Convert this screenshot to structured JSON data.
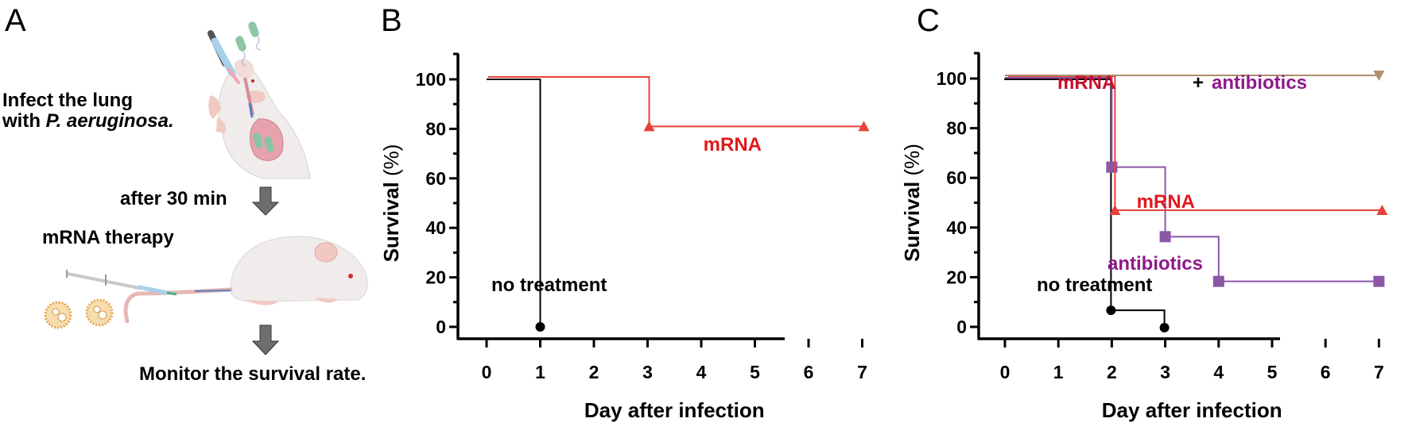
{
  "panels": {
    "a": {
      "letter": "A",
      "step1_line1": "Infect the lung",
      "step1_line2_prefix": "with ",
      "step1_line2_italic": "P. aeruginosa.",
      "step2_label": "after 30 min",
      "step3_label": "mRNA therapy",
      "step4_label": "Monitor the survival rate."
    },
    "b": {
      "letter": "B"
    },
    "c": {
      "letter": "C"
    }
  },
  "chart_data": [
    {
      "id": "B",
      "type": "line",
      "subtype": "kaplan-meier-step",
      "title": "",
      "xlabel": "Day after infection",
      "ylabel_bold": "Survival",
      "ylabel_unit": "(%)",
      "xlim": [
        0,
        7
      ],
      "ylim": [
        0,
        100
      ],
      "xticks": [
        0,
        1,
        2,
        3,
        4,
        5,
        6,
        7
      ],
      "yticks": [
        0,
        20,
        40,
        60,
        80,
        100
      ],
      "grid": false,
      "series": [
        {
          "name": "no treatment",
          "color": "#000000",
          "marker": "circle",
          "x": [
            0,
            1
          ],
          "y": [
            100,
            0
          ],
          "marker_points": [
            [
              1,
              0
            ]
          ]
        },
        {
          "name": "mRNA",
          "color": "#e8413a",
          "marker": "triangle-up",
          "x": [
            0,
            3,
            7
          ],
          "y": [
            100,
            80,
            80
          ],
          "marker_points": [
            [
              3,
              80
            ],
            [
              7,
              80
            ]
          ]
        }
      ],
      "annotations": [
        {
          "text": "no treatment",
          "color": "#000000"
        },
        {
          "text": "mRNA",
          "color": "#e0191e"
        }
      ]
    },
    {
      "id": "C",
      "type": "line",
      "subtype": "kaplan-meier-step",
      "title": "",
      "xlabel": "Day after infection",
      "ylabel_bold": "Survival",
      "ylabel_unit": "(%)",
      "xlim": [
        0,
        7
      ],
      "ylim": [
        0,
        100
      ],
      "xticks": [
        0,
        1,
        2,
        3,
        4,
        5,
        6,
        7
      ],
      "yticks": [
        0,
        20,
        40,
        60,
        80,
        100
      ],
      "grid": false,
      "series": [
        {
          "name": "no treatment",
          "color": "#000000",
          "marker": "circle",
          "x": [
            0,
            2,
            3
          ],
          "y": [
            100,
            7,
            0
          ],
          "marker_points": [
            [
              2,
              7
            ],
            [
              3,
              0
            ]
          ]
        },
        {
          "name": "antibiotics",
          "color": "#8b57a6",
          "marker": "square",
          "x": [
            0,
            2,
            3,
            4,
            7
          ],
          "y": [
            100,
            64,
            36,
            18,
            18
          ],
          "marker_points": [
            [
              2,
              64
            ],
            [
              3,
              36
            ],
            [
              4,
              18
            ],
            [
              7,
              18
            ]
          ]
        },
        {
          "name": "mRNA",
          "color": "#e8413a",
          "marker": "triangle-up",
          "x": [
            0,
            2,
            7
          ],
          "y": [
            100,
            46,
            46
          ],
          "marker_points": [
            [
              2,
              46
            ],
            [
              7,
              46
            ]
          ]
        },
        {
          "name": "mRNA + antibiotics",
          "color": "#b08e6e",
          "marker": "triangle-down",
          "x": [
            0,
            7
          ],
          "y": [
            100,
            100
          ],
          "marker_points": [
            [
              7,
              100
            ]
          ]
        }
      ],
      "annotations": [
        {
          "text": "mRNA",
          "color": "#c8102e"
        },
        {
          "text": "+",
          "color": "#000000"
        },
        {
          "text": "antibiotics",
          "color": "#8e1a8a"
        },
        {
          "text": "mRNA",
          "color": "#e0191e"
        },
        {
          "text": "antibiotics",
          "color": "#8e1a8a"
        },
        {
          "text": "no treatment",
          "color": "#000000"
        }
      ]
    }
  ]
}
